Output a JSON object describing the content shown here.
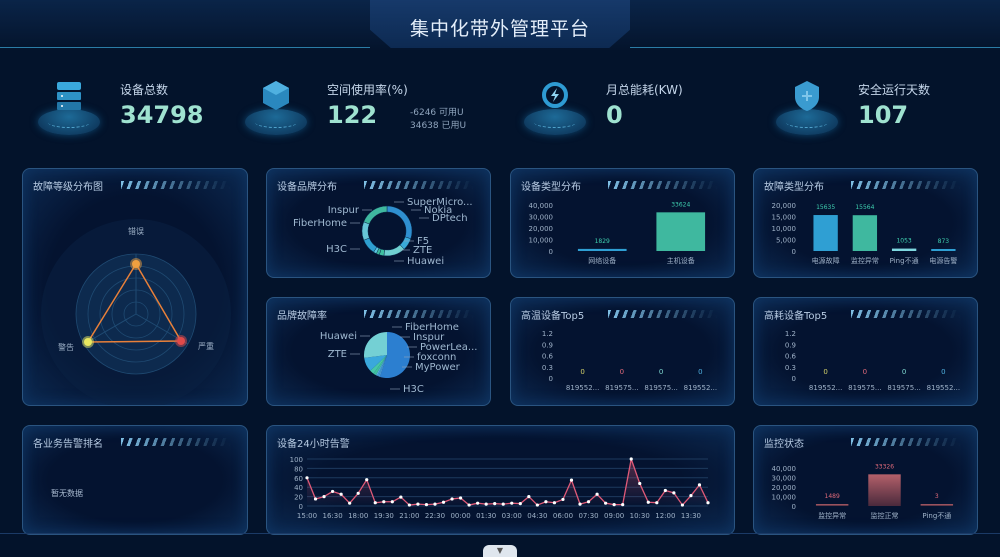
{
  "header": {
    "title": "集中化带外管理平台"
  },
  "stats": [
    {
      "label": "设备总数",
      "value": "34798",
      "icon": "server-icon"
    },
    {
      "label": "空间使用率(%)",
      "value": "122",
      "icon": "cube-icon",
      "sub": [
        "-6246 可用U",
        "34638 已用U"
      ]
    },
    {
      "label": "月总能耗(KW)",
      "value": "0",
      "icon": "power-icon"
    },
    {
      "label": "安全运行天数",
      "value": "107",
      "icon": "shield-icon"
    }
  ],
  "colors": {
    "accent": "#9fe2d0",
    "teal": "#3fb89f",
    "blue": "#2f8fc8",
    "line": "#e05a78",
    "pink": "#a85560"
  },
  "panels": {
    "fault_level": "故障等级分布图",
    "brand_dist": "设备品牌分布",
    "type_dist": "设备类型分布",
    "fault_type": "故障类型分布",
    "brand_fault": "品牌故障率",
    "high_temp": "高温设备Top5",
    "high_power": "高耗设备Top5",
    "biz_alarm": "各业务告警排名",
    "biz_alarm_empty": "暂无数据",
    "alarm24": "设备24小时告警",
    "monitor": "监控状态"
  },
  "chart_data": [
    {
      "id": "fault_level",
      "type": "radar",
      "indicators": [
        "错误",
        "严重",
        "警告"
      ]
    },
    {
      "id": "brand_dist",
      "type": "pie",
      "donut": true,
      "labels": [
        "Huawei",
        "ZTE",
        "F5",
        "DPtech",
        "Nokia",
        "SuperMicro...",
        "Inspur",
        "FiberHome",
        "H3C"
      ],
      "values": [
        30,
        8,
        14,
        3,
        2,
        2,
        10,
        12,
        19
      ]
    },
    {
      "id": "type_dist",
      "type": "bar",
      "categories": [
        "网络设备",
        "主机设备"
      ],
      "values": [
        1829,
        33624
      ],
      "yticks": [
        "0",
        "10,000",
        "20,000",
        "30,000",
        "40,000"
      ],
      "ylim": [
        0,
        40000
      ]
    },
    {
      "id": "fault_type",
      "type": "bar",
      "categories": [
        "电源故障",
        "监控异常",
        "Ping不通",
        "电源告警"
      ],
      "values": [
        15635,
        15564,
        1053,
        873
      ],
      "yticks": [
        "0",
        "5,000",
        "10,000",
        "15,000",
        "20,000"
      ],
      "ylim": [
        0,
        20000
      ]
    },
    {
      "id": "brand_fault",
      "type": "pie",
      "donut": false,
      "labels": [
        "H3C",
        "MyPower",
        "foxconn",
        "PowerLea...",
        "Inspur",
        "FiberHome",
        "Huawei",
        "ZTE"
      ],
      "values": [
        55,
        1,
        1,
        1,
        2,
        3,
        10,
        27
      ]
    },
    {
      "id": "high_temp",
      "type": "bar",
      "categories": [
        "819552...",
        "819575...",
        "819575...",
        "819552..."
      ],
      "values": [
        0,
        0,
        0,
        0
      ],
      "yticks": [
        "0",
        "0.3",
        "0.6",
        "0.9",
        "1.2"
      ],
      "ylim": [
        0,
        1.2
      ]
    },
    {
      "id": "high_power",
      "type": "bar",
      "categories": [
        "819552...",
        "819575...",
        "819575...",
        "819552..."
      ],
      "values": [
        0,
        0,
        0,
        0
      ],
      "yticks": [
        "0",
        "0.3",
        "0.6",
        "0.9",
        "1.2"
      ],
      "ylim": [
        0,
        1.2
      ]
    },
    {
      "id": "alarm24",
      "type": "line",
      "x": [
        "15:00",
        "15:30",
        "16:00",
        "16:30",
        "17:00",
        "17:30",
        "18:00",
        "18:30",
        "19:00",
        "19:30",
        "20:00",
        "20:30",
        "21:00",
        "21:30",
        "22:00",
        "22:30",
        "23:00",
        "23:30",
        "00:00",
        "00:30",
        "01:00",
        "01:30",
        "02:00",
        "02:30",
        "03:00",
        "03:30",
        "04:00",
        "04:30",
        "05:00",
        "05:30",
        "06:00",
        "06:30",
        "07:00",
        "07:30",
        "08:00",
        "08:30",
        "09:00",
        "09:30",
        "10:00",
        "10:30",
        "11:00",
        "11:30",
        "12:00",
        "12:30",
        "13:00",
        "13:30",
        "14:00",
        "14:30"
      ],
      "values": [
        60,
        15,
        20,
        31,
        25,
        6,
        27,
        56,
        7,
        9,
        9,
        19,
        2,
        4,
        3,
        4,
        8,
        15,
        17,
        2,
        6,
        4,
        5,
        4,
        6,
        5,
        20,
        2,
        9,
        7,
        14,
        55,
        4,
        9,
        25,
        6,
        3,
        3,
        100,
        48,
        8,
        7,
        33,
        28,
        2,
        22,
        45,
        7
      ],
      "xticks": [
        "15:00",
        "16:30",
        "18:00",
        "19:30",
        "21:00",
        "22:30",
        "00:00",
        "01:30",
        "03:00",
        "04:30",
        "06:00",
        "07:30",
        "09:00",
        "10:30",
        "12:00",
        "13:30"
      ],
      "yticks": [
        "0",
        "20",
        "40",
        "60",
        "80",
        "100"
      ],
      "ylim": [
        0,
        100
      ]
    },
    {
      "id": "monitor",
      "type": "bar",
      "categories": [
        "监控异常",
        "监控正常",
        "Ping不通"
      ],
      "values": [
        1489,
        33326,
        3
      ],
      "yticks": [
        "0",
        "10,000",
        "20,000",
        "30,000",
        "40,000"
      ],
      "ylim": [
        0,
        40000
      ]
    }
  ]
}
